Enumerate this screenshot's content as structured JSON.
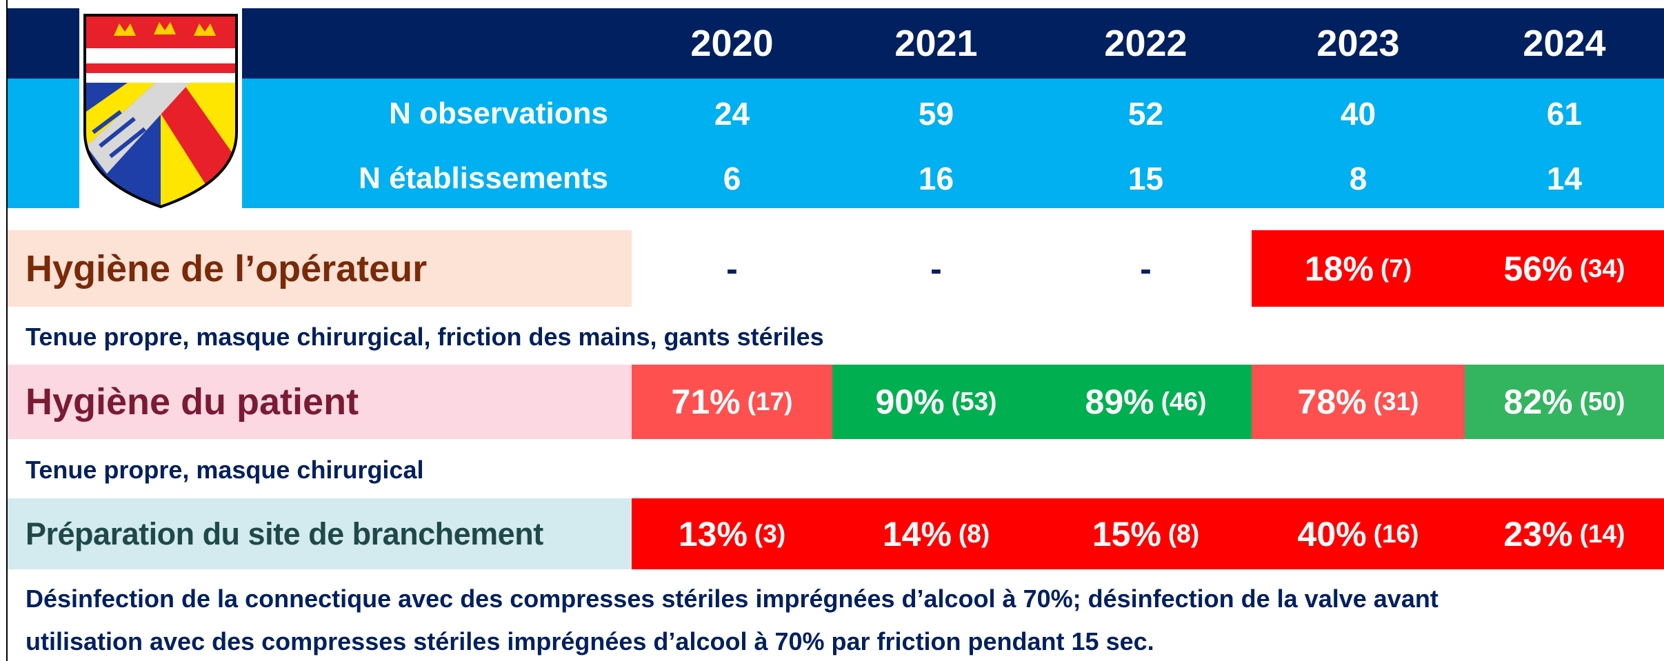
{
  "header": {
    "years": [
      "2020",
      "2021",
      "2022",
      "2023",
      "2024"
    ]
  },
  "summary": [
    {
      "label": "N observations",
      "values": [
        24,
        59,
        52,
        40,
        61
      ]
    },
    {
      "label": "N établissements",
      "values": [
        6,
        16,
        15,
        8,
        14
      ]
    }
  ],
  "sections": [
    {
      "title": "Hygiène de l’opérateur",
      "cells": [
        {
          "text": "-"
        },
        {
          "text": "-"
        },
        {
          "text": "-"
        },
        {
          "pct": "18%",
          "n": "(7)",
          "color": "#ff0000"
        },
        {
          "pct": "56%",
          "n": "(34)",
          "color": "#ff0000"
        }
      ],
      "description": [
        "Tenue propre, masque chirurgical, friction des mains, gants stériles"
      ]
    },
    {
      "title": "Hygiène du patient",
      "cells": [
        {
          "pct": "71%",
          "n": "(17)",
          "color": "#ff5050"
        },
        {
          "pct": "90%",
          "n": "(53)",
          "color": "#00b050"
        },
        {
          "pct": "89%",
          "n": "(46)",
          "color": "#00b050"
        },
        {
          "pct": "78%",
          "n": "(31)",
          "color": "#ff5050"
        },
        {
          "pct": "82%",
          "n": "(50)",
          "color": "#33b560"
        }
      ],
      "description": [
        "Tenue propre, masque chirurgical"
      ]
    },
    {
      "title": "Préparation du site de branchement",
      "cells": [
        {
          "pct": "13%",
          "n": "(3)",
          "color": "#ff0000"
        },
        {
          "pct": "14%",
          "n": "(8)",
          "color": "#ff0000"
        },
        {
          "pct": "15%",
          "n": "(8)",
          "color": "#ff0000"
        },
        {
          "pct": "40%",
          "n": "(16)",
          "color": "#ff0000"
        },
        {
          "pct": "23%",
          "n": "(14)",
          "color": "#ff0000"
        }
      ],
      "description": [
        "Désinfection de la connectique avec des compresses stériles imprégnées d’alcool à 70%; désinfection de la valve avant",
        "utilisation avec des compresses stériles imprégnées d’alcool à 70% par friction pendant 15 sec."
      ]
    }
  ]
}
